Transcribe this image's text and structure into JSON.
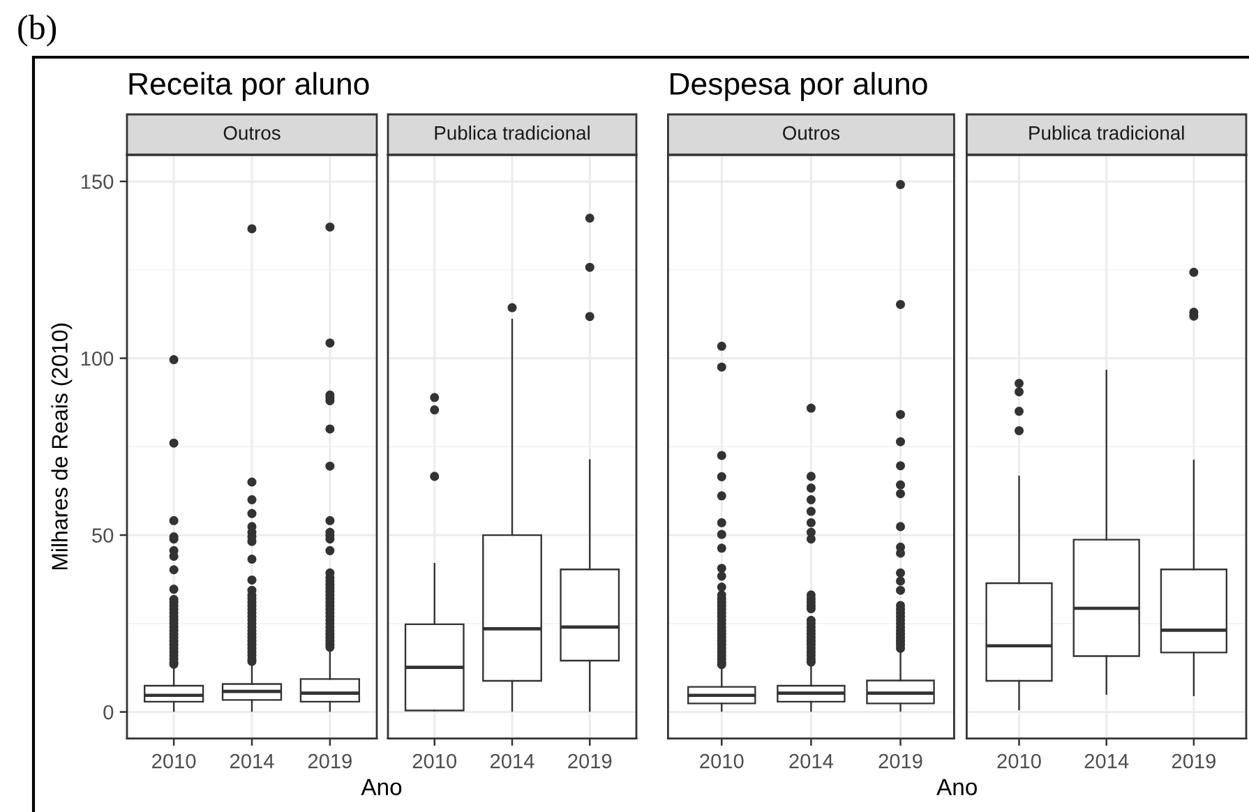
{
  "chart_data": [
    {
      "type": "box",
      "title": "Receita por aluno",
      "subtitle": "Outros",
      "xlabel": "Ano",
      "ylabel": "Milhares de Reais (2010)",
      "annotations": [
        "(b)"
      ],
      "categories": [
        "2010",
        "2014",
        "2019"
      ],
      "color": "#333333",
      "marker": "circle",
      "grid": true,
      "ylim": [
        -7.5,
        157.5
      ],
      "yticks": [
        0,
        50,
        100,
        150
      ],
      "boxes": [
        {
          "low": 0.3,
          "q1": 2.9,
          "median": 4.7,
          "q3": 7.4,
          "high": 12.8,
          "outliers": [
            13.5,
            14,
            15,
            16,
            17,
            18,
            19,
            20,
            21,
            22,
            23,
            24,
            25,
            26,
            27,
            28,
            29,
            30,
            31,
            31.8,
            34.7,
            40.2,
            44.0,
            45.6,
            48.9,
            49.5,
            54.1,
            76.0,
            99.6
          ]
        },
        {
          "low": 0.3,
          "q1": 3.4,
          "median": 5.8,
          "q3": 7.9,
          "high": 13.7,
          "outliers": [
            14.3,
            15,
            16,
            17,
            18,
            19,
            20,
            21,
            22,
            23,
            24,
            25,
            26,
            27,
            28,
            29,
            30,
            31,
            32,
            33,
            34.4,
            37.3,
            43.2,
            48.2,
            49.5,
            50.8,
            52.4,
            56.1,
            60.0,
            65.0,
            136.6
          ]
        },
        {
          "low": 0.3,
          "q1": 2.9,
          "median": 5.3,
          "q3": 9.3,
          "high": 17.6,
          "outliers": [
            18.3,
            19,
            20,
            21,
            22,
            23,
            24,
            25,
            26,
            27,
            28,
            29,
            30,
            31,
            32,
            33,
            34,
            35,
            36,
            37,
            38,
            39.3,
            45.6,
            48.9,
            49.9,
            50.8,
            54.1,
            69.5,
            80.0,
            88.0,
            88.9,
            89.6,
            104.3,
            137.1
          ]
        }
      ]
    },
    {
      "type": "box",
      "subtitle": "Publica tradicional",
      "categories": [
        "2010",
        "2014",
        "2019"
      ],
      "color": "#333333",
      "marker": "circle",
      "grid": true,
      "tick_labels": "x",
      "ylim": [
        -7.5,
        157.5
      ],
      "yticks": [
        0,
        50,
        100,
        150
      ],
      "boxes": [
        {
          "low": 0.4,
          "q1": 0.4,
          "median": 12.6,
          "q3": 24.8,
          "high": 41.9,
          "outliers": [
            66.6,
            85.4,
            88.9
          ]
        },
        {
          "low": 0.3,
          "q1": 8.8,
          "median": 23.5,
          "q3": 50.0,
          "high": 110.9,
          "outliers": [
            114.3
          ]
        },
        {
          "low": 0.3,
          "q1": 14.5,
          "median": 24.0,
          "q3": 40.3,
          "high": 71.2,
          "outliers": [
            111.8,
            125.7,
            139.6
          ]
        }
      ]
    },
    {
      "type": "box",
      "title": "Despesa por aluno",
      "subtitle": "Outros",
      "xlabel": "Ano",
      "categories": [
        "2010",
        "2014",
        "2019"
      ],
      "color": "#333333",
      "marker": "circle",
      "grid": true,
      "tick_labels": "x",
      "ylim": [
        -7.5,
        157.5
      ],
      "yticks": [
        0,
        50,
        100,
        150
      ],
      "boxes": [
        {
          "low": 0.3,
          "q1": 2.4,
          "median": 4.7,
          "q3": 7.1,
          "high": 12.8,
          "outliers": [
            13.4,
            14,
            15,
            16,
            17,
            18,
            19,
            20,
            21,
            22,
            23,
            24,
            25,
            26,
            27,
            28,
            29,
            30,
            31,
            32,
            33.1,
            35.3,
            38.4,
            40.6,
            46.3,
            50.2,
            53.5,
            61.1,
            66.5,
            72.5,
            97.5,
            103.4
          ]
        },
        {
          "low": 0.3,
          "q1": 2.9,
          "median": 5.3,
          "q3": 7.4,
          "high": 13.4,
          "outliers": [
            14.1,
            15,
            16,
            17,
            18,
            19,
            20,
            21,
            22,
            23,
            24,
            25,
            25.9,
            29.2,
            30,
            31,
            32,
            33.1,
            48.9,
            50.8,
            53.5,
            56.7,
            60.0,
            63.3,
            66.6,
            85.9
          ]
        },
        {
          "low": 0.3,
          "q1": 2.4,
          "median": 5.3,
          "q3": 8.9,
          "high": 17.3,
          "outliers": [
            18.0,
            19,
            20,
            21,
            22,
            23,
            24,
            25,
            26,
            27,
            28,
            29,
            30.1,
            34.4,
            37.0,
            39.3,
            44.9,
            46.6,
            52.4,
            61.7,
            64.2,
            69.6,
            76.4,
            84.1,
            115.2,
            149.1
          ]
        }
      ]
    },
    {
      "type": "box",
      "subtitle": "Publica tradicional",
      "categories": [
        "2010",
        "2014",
        "2019"
      ],
      "color": "#333333",
      "marker": "circle",
      "grid": true,
      "tick_labels": "x",
      "ylim": [
        -7.5,
        157.5
      ],
      "yticks": [
        0,
        50,
        100,
        150
      ],
      "boxes": [
        {
          "low": 0.7,
          "q1": 8.8,
          "median": 18.7,
          "q3": 36.4,
          "high": 66.6,
          "outliers": [
            79.5,
            85.0,
            90.5,
            92.9
          ]
        },
        {
          "low": 5.1,
          "q1": 15.8,
          "median": 29.3,
          "q3": 48.7,
          "high": 96.5
        },
        {
          "low": 4.7,
          "q1": 16.8,
          "median": 23.1,
          "q3": 40.3,
          "high": 71.1,
          "outliers": [
            111.9,
            113.0,
            124.3
          ]
        }
      ]
    }
  ]
}
